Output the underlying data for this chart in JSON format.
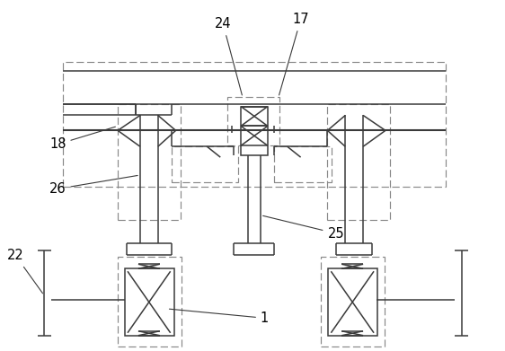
{
  "fig_width": 5.62,
  "fig_height": 3.91,
  "dpi": 100,
  "line_color": "#3a3a3a",
  "dash_color": "#888888",
  "bg_color": "#ffffff",
  "label_fontsize": 10.5
}
